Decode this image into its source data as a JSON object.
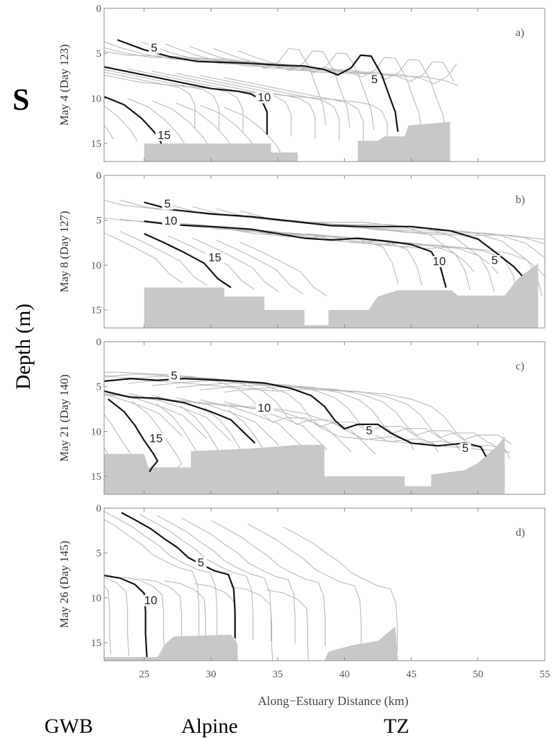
{
  "figure": {
    "variable_label": "S",
    "common_ylabel": "Depth (m)",
    "location_labels": [
      "GWB",
      "Alpine",
      "TZ"
    ]
  },
  "chart_data": {
    "type": "contour",
    "xlabel": "Along−Estuary Distance (km)",
    "xlim": [
      22,
      55
    ],
    "xticks": [
      25,
      30,
      35,
      40,
      45,
      50,
      55
    ],
    "ylim": [
      0,
      17
    ],
    "yticks": [
      0,
      5,
      10,
      15
    ],
    "colors": {
      "thin_contour": "#b8b8b8",
      "bold_contour": "#111111",
      "bottom": "#c8c8c8"
    },
    "panels": [
      {
        "tag": "a)",
        "ylabel": "May 4 (Day 123)",
        "bold_contours": [
          {
            "value": 5,
            "label": "5",
            "points": [
              [
                23,
                3.5
              ],
              [
                25,
                4.6
              ],
              [
                27,
                5.4
              ],
              [
                29,
                5.9
              ],
              [
                31,
                6
              ],
              [
                33,
                6.1
              ],
              [
                35,
                6.3
              ],
              [
                37,
                6.4
              ],
              [
                38.5,
                6.8
              ],
              [
                39.5,
                7.4
              ],
              [
                40.5,
                6.6
              ],
              [
                41.2,
                5.2
              ],
              [
                42,
                5.3
              ],
              [
                42.8,
                7.4
              ],
              [
                43.3,
                9.5
              ],
              [
                43.8,
                11.5
              ],
              [
                44,
                13.7
              ]
            ]
          },
          {
            "value": 10,
            "label": "10",
            "points": [
              [
                22,
                6.5
              ],
              [
                24,
                7.1
              ],
              [
                26,
                7.7
              ],
              [
                28,
                8.3
              ],
              [
                30,
                8.9
              ],
              [
                32,
                9.2
              ],
              [
                33,
                9.5
              ],
              [
                33.8,
                10.2
              ],
              [
                34.2,
                11.5
              ],
              [
                34.2,
                12.8
              ],
              [
                34.2,
                14
              ]
            ]
          },
          {
            "value": 15,
            "label": "15",
            "points": [
              [
                22,
                9.8
              ],
              [
                23.5,
                10.7
              ],
              [
                24.8,
                12.2
              ],
              [
                25.8,
                13.8
              ],
              [
                26.3,
                15
              ]
            ]
          }
        ],
        "label_positions": [
          {
            "text": "5",
            "x": 25.5,
            "y": 4.8
          },
          {
            "text": "10",
            "x": 33.5,
            "y": 10.3
          },
          {
            "text": "5",
            "x": 42,
            "y": 8.3
          },
          {
            "text": "15",
            "x": 26,
            "y": 14.5
          }
        ],
        "thin_shifts": [
          -6,
          -4,
          -2,
          2,
          4,
          6,
          8,
          10
        ],
        "bottom": {
          "xmax": 48,
          "points": [
            [
              22,
              17
            ],
            [
              25,
              17
            ],
            [
              25,
              15
            ],
            [
              34.5,
              15
            ],
            [
              34.5,
              16
            ],
            [
              36.5,
              16
            ],
            [
              36.5,
              17
            ],
            [
              41,
              17
            ],
            [
              41,
              14.7
            ],
            [
              42.5,
              14.7
            ],
            [
              43,
              14.2
            ],
            [
              44.5,
              14.2
            ],
            [
              44.8,
              13
            ],
            [
              47.9,
              12.6
            ],
            [
              47.9,
              17
            ]
          ]
        }
      },
      {
        "tag": "b)",
        "ylabel": "May 8 (Day 127)",
        "bold_contours": [
          {
            "value": 5,
            "label": "5",
            "points": [
              [
                25,
                3
              ],
              [
                27,
                3.8
              ],
              [
                30,
                4.3
              ],
              [
                33,
                4.6
              ],
              [
                36,
                5.1
              ],
              [
                39,
                5.6
              ],
              [
                42,
                5.7
              ],
              [
                45,
                5.7
              ],
              [
                48,
                6.2
              ],
              [
                50,
                7.1
              ],
              [
                51.5,
                8.8
              ],
              [
                52.7,
                10.2
              ],
              [
                53.3,
                11.2
              ]
            ]
          },
          {
            "value": 10,
            "label": "10",
            "points": [
              [
                25,
                5.1
              ],
              [
                27,
                5.5
              ],
              [
                30,
                5.7
              ],
              [
                33,
                6
              ],
              [
                35,
                6.5
              ],
              [
                37,
                7
              ],
              [
                39,
                7.2
              ],
              [
                41,
                7
              ],
              [
                43,
                7.3
              ],
              [
                45,
                7.7
              ],
              [
                46.5,
                8.5
              ],
              [
                47.2,
                10.3
              ],
              [
                47.6,
                12.5
              ]
            ]
          },
          {
            "value": 15,
            "label": "15",
            "points": [
              [
                25,
                6.5
              ],
              [
                26.5,
                7.5
              ],
              [
                28,
                8.6
              ],
              [
                29.5,
                9.8
              ],
              [
                30.5,
                11.5
              ],
              [
                31.5,
                12.5
              ]
            ]
          }
        ],
        "label_positions": [
          {
            "text": "5",
            "x": 26.5,
            "y": 3.6
          },
          {
            "text": "10",
            "x": 26.5,
            "y": 5.5
          },
          {
            "text": "15",
            "x": 29.8,
            "y": 9.6
          },
          {
            "text": "10",
            "x": 46.6,
            "y": 10
          },
          {
            "text": "5",
            "x": 51,
            "y": 9.9
          }
        ],
        "thin_shifts": [
          -4,
          -2,
          2,
          4,
          6,
          8
        ],
        "bottom": {
          "xmax": 55,
          "points": [
            [
              25,
              17
            ],
            [
              25,
              12.5
            ],
            [
              31,
              12.5
            ],
            [
              31,
              13.5
            ],
            [
              34,
              13.5
            ],
            [
              34,
              15
            ],
            [
              37,
              15
            ],
            [
              37,
              16.7
            ],
            [
              38.8,
              16.7
            ],
            [
              38.8,
              15
            ],
            [
              41.8,
              15
            ],
            [
              42.5,
              13.5
            ],
            [
              44,
              12.8
            ],
            [
              48,
              12.8
            ],
            [
              48.5,
              13.4
            ],
            [
              52,
              13.4
            ],
            [
              53,
              11.5
            ],
            [
              54.5,
              9.8
            ],
            [
              54.5,
              17
            ]
          ]
        }
      },
      {
        "tag": "c)",
        "ylabel": "May 21 (Day 140)",
        "bold_contours": [
          {
            "value": 5,
            "label": "5",
            "points": [
              [
                22,
                4.4
              ],
              [
                24,
                4.1
              ],
              [
                26,
                4.3
              ],
              [
                28,
                4.1
              ],
              [
                31,
                4.3
              ],
              [
                34,
                4.6
              ],
              [
                36,
                5.2
              ],
              [
                37.5,
                6
              ],
              [
                38.5,
                7.2
              ],
              [
                39.3,
                8.8
              ],
              [
                40,
                9.7
              ],
              [
                41,
                9.2
              ],
              [
                42.5,
                9.2
              ],
              [
                43.5,
                10.2
              ],
              [
                45,
                11.3
              ],
              [
                47,
                11.6
              ],
              [
                49,
                11.3
              ],
              [
                50.2,
                11.7
              ],
              [
                50.6,
                12.8
              ]
            ]
          },
          {
            "value": 10,
            "label": "10",
            "points": [
              [
                22,
                5.5
              ],
              [
                24,
                6.2
              ],
              [
                26,
                6.3
              ],
              [
                28,
                6.8
              ],
              [
                30,
                7.8
              ],
              [
                31.5,
                8.7
              ],
              [
                32.6,
                10.3
              ],
              [
                33.3,
                11.3
              ]
            ]
          },
          {
            "value": 15,
            "label": "15",
            "points": [
              [
                22.3,
                6.4
              ],
              [
                23.5,
                7.8
              ],
              [
                24.3,
                9.3
              ],
              [
                25,
                11
              ],
              [
                25.7,
                12.5
              ],
              [
                26,
                13.3
              ],
              [
                25.6,
                14
              ],
              [
                25.4,
                14.5
              ]
            ]
          }
        ],
        "label_positions": [
          {
            "text": "5",
            "x": 27,
            "y": 4.2
          },
          {
            "text": "10",
            "x": 33.5,
            "y": 7.8
          },
          {
            "text": "15",
            "x": 25.4,
            "y": 11.2
          },
          {
            "text": "5",
            "x": 41.6,
            "y": 10.3
          },
          {
            "text": "5",
            "x": 48.8,
            "y": 12.3
          }
        ],
        "thin_shifts": [
          -6,
          -4,
          -2,
          2,
          4,
          6,
          8,
          10
        ],
        "bottom": {
          "xmax": 52,
          "points": [
            [
              22,
              17
            ],
            [
              22,
              12.5
            ],
            [
              25,
              12.5
            ],
            [
              25.3,
              14
            ],
            [
              28.5,
              14
            ],
            [
              28.5,
              12.2
            ],
            [
              33,
              11.9
            ],
            [
              36.5,
              11.5
            ],
            [
              38.5,
              11.5
            ],
            [
              38.5,
              15
            ],
            [
              44.5,
              15
            ],
            [
              44.5,
              16.1
            ],
            [
              46.5,
              16.1
            ],
            [
              46.5,
              14.8
            ],
            [
              49,
              14.3
            ],
            [
              50,
              13.5
            ],
            [
              51.5,
              11.5
            ],
            [
              52,
              10.5
            ],
            [
              52,
              17
            ]
          ]
        }
      },
      {
        "tag": "d)",
        "ylabel": "May 26 (Day 145)",
        "bold_contours": [
          {
            "value": 5,
            "label": "5",
            "points": [
              [
                23.3,
                0.5
              ],
              [
                24.3,
                1.3
              ],
              [
                25.5,
                2.3
              ],
              [
                26.5,
                3.4
              ],
              [
                27.5,
                4.4
              ],
              [
                28.3,
                5.5
              ],
              [
                29.3,
                6.3
              ],
              [
                30.3,
                7
              ],
              [
                31.3,
                7.4
              ],
              [
                31.7,
                9
              ],
              [
                31.8,
                11.5
              ],
              [
                31.8,
                14.5
              ]
            ]
          },
          {
            "value": 10,
            "label": "10",
            "points": [
              [
                22,
                7.5
              ],
              [
                23.2,
                7.8
              ],
              [
                24.3,
                8.5
              ],
              [
                25,
                9.5
              ],
              [
                25.1,
                11.5
              ],
              [
                25.1,
                14
              ],
              [
                25.2,
                16.6
              ]
            ]
          }
        ],
        "label_positions": [
          {
            "text": "5",
            "x": 29,
            "y": 6.5
          },
          {
            "text": "10",
            "x": 25,
            "y": 10.7
          }
        ],
        "thin_shifts": [
          -3,
          -1.5,
          1.5,
          3,
          5,
          7.5,
          10.5,
          13.5
        ],
        "bottom": {
          "xmax": 44,
          "points": [
            [
              22,
              17
            ],
            [
              22,
              16.6
            ],
            [
              26,
              16.6
            ],
            [
              26.5,
              15.3
            ],
            [
              27.2,
              14.3
            ],
            [
              31.5,
              14.1
            ],
            [
              32,
              15.2
            ],
            [
              32,
              17
            ],
            [
              38.5,
              17
            ],
            [
              38.8,
              16
            ],
            [
              40.5,
              15.3
            ],
            [
              42.5,
              14.8
            ],
            [
              43.8,
              13.2
            ],
            [
              44,
              17
            ]
          ]
        }
      }
    ]
  }
}
